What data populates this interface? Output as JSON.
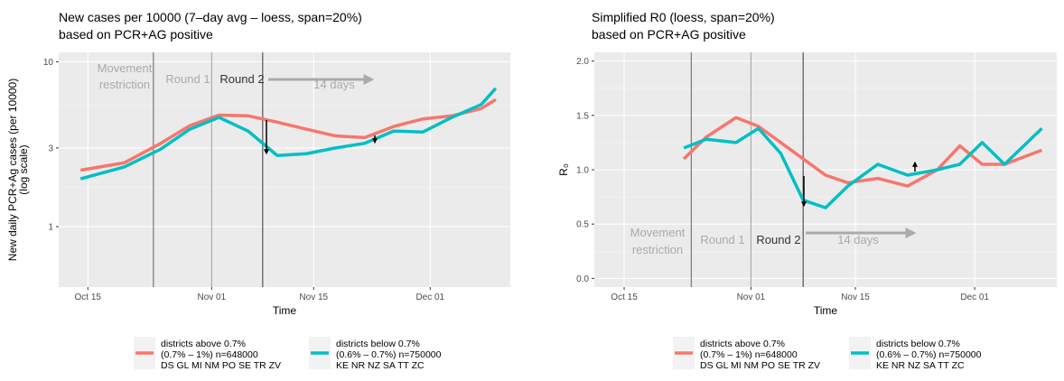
{
  "chart_data": [
    {
      "type": "line",
      "title": "New cases per 10000 (7–day avg – loess, span=20%)",
      "subtitle": "based on PCR+AG positive",
      "x_label": "Time",
      "y_label": [
        "New daily PCR+Ag cases (per 10000)",
        "(log scale)"
      ],
      "log_scale": true,
      "grid": true,
      "xlim": [
        "Oct 11",
        "Dec 12"
      ],
      "xticks": [
        "Oct 15",
        "Nov 01",
        "Nov 15",
        "Dec 01"
      ],
      "ylim": [
        0.43,
        11.4
      ],
      "yticks": [
        1,
        3,
        10
      ],
      "vlines": [
        "Oct 24",
        "Nov 01",
        "Nov 08"
      ],
      "annotations": [
        "Movement",
        "restriction",
        "Round 1",
        "Round 2",
        "14 days"
      ],
      "x": [
        "Oct 14",
        "Oct 20",
        "Oct 25",
        "Oct 29",
        "Nov 02",
        "Nov 06",
        "Nov 10",
        "Nov 14",
        "Nov 18",
        "Nov 22",
        "Nov 26",
        "Nov 30",
        "Dec 04",
        "Dec 08",
        "Dec 10"
      ],
      "series": [
        {
          "name": "districts above 0.7%",
          "detail": [
            "(0.7% – 1%) n=648000",
            "DS GL MI NM PO SE TR ZV"
          ],
          "color": "#f8766d",
          "values": [
            2.2,
            2.44,
            3.2,
            4.1,
            4.75,
            4.7,
            4.3,
            3.9,
            3.55,
            3.47,
            4.05,
            4.5,
            4.7,
            5.2,
            5.9
          ]
        },
        {
          "name": "districts below 0.7%",
          "detail": [
            "(0.6% – 0.7%) n=750000",
            "KE NR NZ SA TT ZC"
          ],
          "color": "#00bfc4",
          "values": [
            1.95,
            2.3,
            2.95,
            3.9,
            4.6,
            3.8,
            2.7,
            2.77,
            3.0,
            3.2,
            3.8,
            3.75,
            4.6,
            5.5,
            6.9
          ]
        }
      ]
    },
    {
      "type": "line",
      "title": "Simplified R0 (loess, span=20%)",
      "subtitle": "based on PCR+AG positive",
      "x_label": "Time",
      "y_label": [
        "R₀"
      ],
      "log_scale": false,
      "grid": true,
      "xlim": [
        "Oct 11",
        "Dec 12"
      ],
      "xticks": [
        "Oct 15",
        "Nov 01",
        "Nov 15",
        "Dec 01"
      ],
      "ylim": [
        -0.08,
        2.08
      ],
      "yticks": [
        {
          "value": 0,
          "label": "0.0"
        },
        {
          "value": 0.5,
          "label": "0.5"
        },
        {
          "value": 1,
          "label": "1.0"
        },
        {
          "value": 1.5,
          "label": "1.5"
        },
        {
          "value": 2,
          "label": "2.0"
        }
      ],
      "vlines": [
        "Oct 24",
        "Nov 01",
        "Nov 08"
      ],
      "annotations": [
        "Movement",
        "restriction",
        "Round 1",
        "Round 2",
        "14 days"
      ],
      "x": [
        "Oct 23",
        "Oct 26",
        "Oct 30",
        "Nov 02",
        "Nov 05",
        "Nov 08",
        "Nov 11",
        "Nov 14",
        "Nov 18",
        "Nov 22",
        "Nov 26",
        "Nov 29",
        "Dec 02",
        "Dec 05",
        "Dec 10"
      ],
      "series": [
        {
          "name": "districts above 0.7%",
          "detail": [
            "(0.7% – 1%) n=648000",
            "DS GL MI NM PO SE TR ZV"
          ],
          "color": "#f8766d",
          "values": [
            1.1,
            1.3,
            1.48,
            1.4,
            1.25,
            1.1,
            0.95,
            0.88,
            0.92,
            0.85,
            1.0,
            1.22,
            1.05,
            1.05,
            1.18
          ]
        },
        {
          "name": "districts below 0.7%",
          "detail": [
            "(0.6% – 0.7%) n=750000",
            "KE NR NZ SA TT ZC"
          ],
          "color": "#00bfc4",
          "values": [
            1.2,
            1.28,
            1.25,
            1.38,
            1.15,
            0.72,
            0.65,
            0.85,
            1.05,
            0.95,
            1.0,
            1.05,
            1.25,
            1.05,
            1.38
          ]
        }
      ]
    }
  ]
}
